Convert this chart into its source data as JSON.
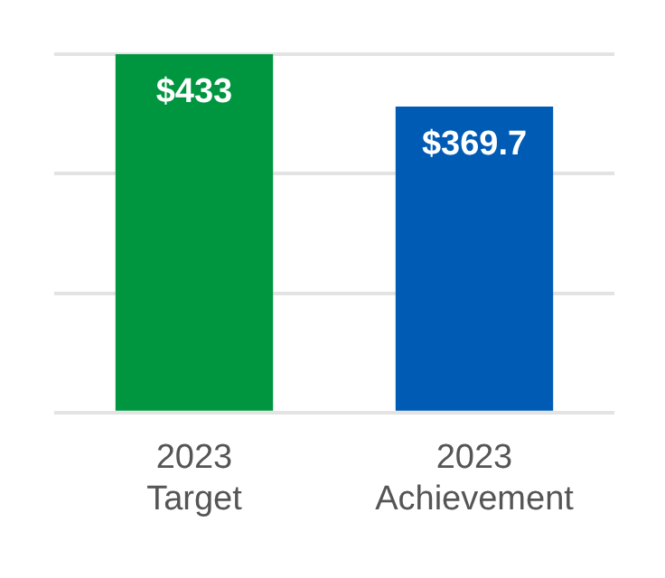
{
  "chart_data": {
    "type": "bar",
    "categories": [
      "2023 Target",
      "2023 Achievement"
    ],
    "values": [
      433,
      369.7
    ],
    "value_labels": [
      "$433",
      "$369.7"
    ],
    "colors": [
      "#009640",
      "#005bb5"
    ],
    "ylim": [
      0,
      433
    ],
    "yticks": [
      {
        "value": 0,
        "label": null
      },
      {
        "value": 144.3,
        "label": null
      },
      {
        "value": 288.7,
        "label": null
      },
      {
        "value": 433,
        "label": null
      }
    ],
    "grid": "y",
    "tick_labels": "x",
    "legend": false
  }
}
